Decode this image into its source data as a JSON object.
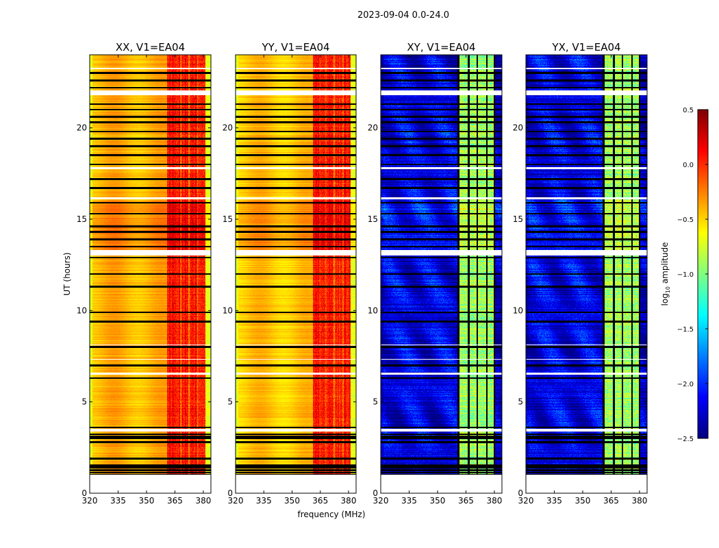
{
  "chart_data": {
    "type": "heatmap",
    "title": "2023-09-04 0.0-24.0",
    "xlabel": "frequency (MHz)",
    "ylabel": "UT (hours)",
    "xlim": [
      320,
      384
    ],
    "ylim": [
      0,
      24
    ],
    "xticks": [
      "320",
      "335",
      "350",
      "365",
      "380"
    ],
    "xtick_values": [
      320,
      335,
      350,
      365,
      380
    ],
    "yticks": [
      "0",
      "5",
      "10",
      "15",
      "20"
    ],
    "ytick_values": [
      0,
      5,
      10,
      15,
      20
    ],
    "data_time_range": [
      1.0,
      24.0
    ],
    "panels": [
      {
        "title": "XX, V1=EA04",
        "pol": "XX",
        "edge_level": -0.7,
        "low_band_level": -0.4,
        "high_band": [
          361,
          381
        ],
        "high_band_level": 0.05,
        "masked_channels": []
      },
      {
        "title": "YY, V1=EA04",
        "pol": "YY",
        "edge_level": -0.7,
        "low_band_level": -0.45,
        "high_band": [
          361,
          381
        ],
        "high_band_level": 0.05,
        "masked_channels": []
      },
      {
        "title": "XY, V1=EA04",
        "pol": "XY",
        "edge_level": -2.3,
        "low_band_level": -2.2,
        "high_band": [
          361,
          380
        ],
        "high_band_level": -0.9,
        "masked_channels": [
          361,
          366.5,
          371,
          376,
          380
        ]
      },
      {
        "title": "YX, V1=EA04",
        "pol": "YX",
        "edge_level": -2.3,
        "low_band_level": -2.2,
        "high_band": [
          361,
          380
        ],
        "high_band_level": -0.9,
        "masked_channels": [
          361,
          366.5,
          371,
          376,
          380
        ]
      }
    ],
    "flagged_times_black": [
      1.0,
      1.12,
      1.25,
      1.4,
      1.52,
      1.9,
      2.8,
      3.0,
      3.1,
      3.22,
      3.6,
      6.3,
      7.0,
      8.0,
      9.4,
      9.9,
      11.3,
      12.0,
      12.9,
      13.5,
      13.9,
      14.3,
      14.6,
      15.3,
      15.9,
      16.7,
      17.2,
      18.0,
      18.5,
      19.0,
      19.4,
      19.8,
      20.3,
      20.6,
      21.0,
      21.3,
      22.2,
      22.6,
      23.0
    ],
    "gaps_white": [
      [
        3.38,
        3.52
      ],
      [
        6.48,
        6.6
      ],
      [
        7.3,
        7.36
      ],
      [
        8.1,
        8.15
      ],
      [
        13.0,
        13.3
      ],
      [
        16.1,
        16.2
      ],
      [
        17.75,
        17.85
      ],
      [
        21.8,
        22.05
      ],
      [
        23.2,
        23.3
      ]
    ],
    "colorbar": {
      "label": "log10 amplitude",
      "label_main": "log",
      "label_sub": "10",
      "label_rest": " amplitude",
      "range": [
        -2.5,
        0.5
      ],
      "colormap": "jet",
      "ticks": [
        "0.5",
        "0.0",
        "−0.5",
        "−1.0",
        "−1.5",
        "−2.0",
        "−2.5"
      ],
      "tick_values": [
        0.5,
        0.0,
        -0.5,
        -1.0,
        -1.5,
        -2.0,
        -2.5
      ]
    }
  }
}
